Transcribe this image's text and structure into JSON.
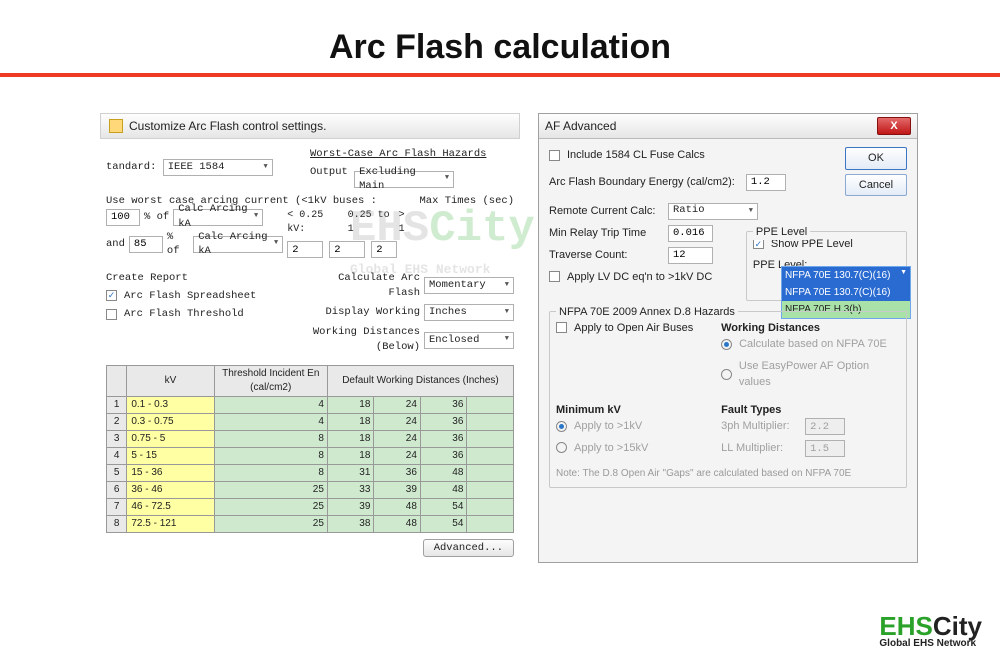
{
  "slide": {
    "title": "Arc Flash calculation",
    "rule_color": "#ef3b24"
  },
  "watermark": {
    "main_a": "EHS",
    "main_b": "City",
    "sub": "Global EHS Network"
  },
  "left": {
    "header": "Customize Arc Flash control settings.",
    "tandard_label": "tandard:",
    "tandard": "IEEE 1584",
    "worst_title": "Worst-Case Arc Flash Hazards",
    "output_label": "Output",
    "output": "Excluding Main",
    "wc_text": "Use worst case arcing current (<1kV buses :",
    "wc_pct1": "100",
    "wc_of": "% of",
    "wc_calc": "Calc Arcing kA",
    "wc_and": "and",
    "wc_pct2": "85",
    "mt_title": "Max Times (sec)",
    "mt_col1": "< 0.25 kV:",
    "mt_col2": "0.25 to 1",
    "mt_col3": "> 1",
    "mt_v1": "2",
    "mt_v2": "2",
    "mt_v3": "2",
    "cr_title": "Create Report",
    "cr_sp": "Arc Flash Spreadsheet",
    "cr_th": "Arc Flash Threshold",
    "calc_af_label": "Calculate Arc Flash",
    "calc_af": "Momentary",
    "disp_w_label": "Display Working",
    "disp_w": "Inches",
    "wd_label": "Working Distances (Below)",
    "wd": "Enclosed",
    "table": {
      "h_kv": "kV",
      "h_thr": "Threshold Incident En (cal/cm2)",
      "h_def": "Default Working Distances (Inches)",
      "rows": [
        {
          "n": "1",
          "kv": "0.1 - 0.3",
          "t": "4",
          "d": [
            "18",
            "24",
            "36",
            ""
          ]
        },
        {
          "n": "2",
          "kv": "0.3 - 0.75",
          "t": "4",
          "d": [
            "18",
            "24",
            "36",
            ""
          ]
        },
        {
          "n": "3",
          "kv": "0.75 - 5",
          "t": "8",
          "d": [
            "18",
            "24",
            "36",
            ""
          ]
        },
        {
          "n": "4",
          "kv": "5 - 15",
          "t": "8",
          "d": [
            "18",
            "24",
            "36",
            ""
          ]
        },
        {
          "n": "5",
          "kv": "15 - 36",
          "t": "8",
          "d": [
            "31",
            "36",
            "48",
            ""
          ]
        },
        {
          "n": "6",
          "kv": "36 - 46",
          "t": "25",
          "d": [
            "33",
            "39",
            "48",
            ""
          ]
        },
        {
          "n": "7",
          "kv": "46 - 72.5",
          "t": "25",
          "d": [
            "39",
            "48",
            "54",
            ""
          ]
        },
        {
          "n": "8",
          "kv": "72.5 - 121",
          "t": "25",
          "d": [
            "38",
            "48",
            "54",
            ""
          ]
        }
      ]
    },
    "adv_btn": "Advanced..."
  },
  "right": {
    "title": "AF Advanced",
    "ok": "OK",
    "cancel": "Cancel",
    "incl1584": "Include 1584 CL Fuse Calcs",
    "afbe_label": "Arc Flash Boundary Energy (cal/cm2):",
    "afbe": "1.2",
    "rcc_label": "Remote Current Calc:",
    "rcc": "Ratio",
    "mrt_label": "Min Relay Trip Time",
    "mrt": "0.016",
    "tc_label": "Traverse Count:",
    "tc": "12",
    "applv": "Apply LV DC eq'n to >1kV DC",
    "ppe_group": "PPE Level",
    "show_ppe": "Show PPE Level",
    "ppe_level_label": "PPE Level:",
    "ppe_sel": "NFPA 70E 130.7(C)(16)",
    "ppe_opt1": "NFPA 70E 130.7(C)(16)",
    "ppe_opt2": "NFPA 70E H.3(b)",
    "d8_title": "NFPA 70E 2009 Annex D.8 Hazards",
    "apply_open": "Apply to Open Air Buses",
    "wd_title": "Working Distances",
    "wd_r1": "Calculate based on NFPA 70E",
    "wd_r2": "Use EasyPower AF Option values",
    "minkv_title": "Minimum kV",
    "minkv_r1": "Apply to >1kV",
    "minkv_r2": "Apply to >15kV",
    "ft_title": "Fault Types",
    "ft_3ph_label": "3ph Multiplier:",
    "ft_3ph": "2.2",
    "ft_ll_label": "LL Multiplier:",
    "ft_ll": "1.5",
    "note": "Note:  The D.8 Open Air \"Gaps\" are calculated based on NFPA 70E"
  },
  "logo": {
    "a": "EHS",
    "b": "City",
    "sub": "Global EHS Network"
  }
}
